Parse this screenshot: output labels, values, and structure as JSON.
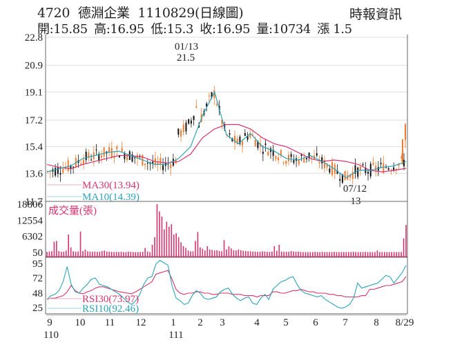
{
  "header": {
    "stock_code": "4720",
    "stock_name": "德淵企業",
    "date_code": "1110829(日線圖)",
    "source": "時報資訊",
    "open_label": "開:15.85",
    "high_label": "高:16.95",
    "low_label": "低:15.3",
    "close_label": "收:16.95",
    "volume_label": "量:10734",
    "change_label": "漲 1.5"
  },
  "colors": {
    "up_candle": "#f07a2e",
    "down_candle": "#111111",
    "ma30": "#d6336c",
    "ma10": "#2aa3b8",
    "volume": "#d6336c",
    "rsi30": "#d6336c",
    "rsi10": "#2aa3b8",
    "grid": "#dddddd",
    "axis": "#555555"
  },
  "annotations": {
    "peak_date": "01/13",
    "peak_value": "21.5",
    "trough_date": "07/12",
    "trough_value": "13"
  },
  "legends": {
    "ma30": "MA30(13.94)",
    "ma10": "MA10(14.39)",
    "volume": "成交量(張)",
    "rsi30": "RSI30(73.97)",
    "rsi10": "RSI10(92.46)"
  },
  "chart_data": [
    {
      "type": "candlestick",
      "title": "4720 德淵企業 1110829(日線圖)",
      "ylabel": "Price",
      "yticks": [
        22.8,
        20.9,
        19.1,
        17.2,
        15.4,
        13.6,
        11.7
      ],
      "ylim": [
        11.7,
        22.8
      ],
      "grid": true,
      "x_ticks": [
        "9",
        "10",
        "11",
        "12",
        "1",
        "2",
        "3",
        "4",
        "5",
        "6",
        "7",
        "8",
        "8/29"
      ],
      "x_year_labels": [
        "110",
        "111"
      ],
      "series": [
        {
          "name": "MA30",
          "last": 13.94,
          "values": [
            14.2,
            14.0,
            13.9,
            14.2,
            14.4,
            14.6,
            14.8,
            14.8,
            14.7,
            14.4,
            14.3,
            14.4,
            14.9,
            16.0,
            16.6,
            16.9,
            16.9,
            16.6,
            16.0,
            15.6,
            15.4,
            15.0,
            14.6,
            14.4,
            14.5,
            14.4,
            14.2,
            13.8,
            13.7,
            13.8,
            13.94
          ]
        },
        {
          "name": "MA10",
          "last": 14.39,
          "values": [
            13.7,
            13.9,
            14.1,
            14.6,
            14.8,
            15.0,
            15.1,
            14.8,
            14.5,
            14.2,
            14.2,
            14.6,
            15.4,
            17.5,
            19.1,
            16.2,
            15.6,
            16.3,
            15.4,
            15.1,
            14.6,
            14.5,
            14.8,
            14.4,
            13.9,
            13.3,
            13.8,
            13.8,
            14.0,
            14.1,
            14.39
          ]
        }
      ],
      "last_candle": {
        "open": 15.85,
        "high": 16.95,
        "low": 15.3,
        "close": 16.95
      },
      "annotations": [
        {
          "label": "01/13 21.5",
          "type": "high"
        },
        {
          "label": "07/12 13",
          "type": "low"
        }
      ]
    },
    {
      "type": "bar",
      "title": "成交量(張)",
      "yticks": [
        18806,
        12554,
        6302,
        50
      ],
      "ylim": [
        50,
        18806
      ],
      "values": [
        300,
        400,
        500,
        4200,
        4500,
        600,
        300,
        300,
        800,
        7000,
        2000,
        500,
        300,
        400,
        8200,
        600,
        1200,
        500,
        400,
        300,
        400,
        300,
        300,
        600,
        800,
        400,
        300,
        300,
        200,
        300,
        200,
        300,
        200,
        200,
        400,
        300,
        200,
        200,
        200,
        200,
        300,
        1800,
        400,
        200,
        3000,
        6000,
        18806,
        16000,
        14000,
        9000,
        12000,
        10000,
        11000,
        7000,
        7500,
        6000,
        4000,
        2500,
        1800,
        800,
        500,
        500,
        4500,
        8000,
        2000,
        1500,
        800,
        2500,
        1200,
        1000,
        800,
        900,
        600,
        500,
        4800,
        1200,
        2400,
        1600,
        900,
        800,
        1200,
        900,
        700,
        600,
        500,
        500,
        400,
        400,
        300,
        300,
        500,
        400,
        300,
        300,
        400,
        2500,
        700,
        3000,
        400,
        300,
        300,
        300,
        600,
        400,
        300,
        400,
        300,
        200,
        200,
        200,
        200,
        200,
        300,
        200,
        200,
        300,
        200,
        200,
        200,
        200,
        300,
        200,
        200,
        200,
        200,
        200,
        200,
        200,
        300,
        200,
        200,
        200,
        200,
        300,
        200,
        200,
        200,
        200,
        800,
        200,
        200,
        200,
        200,
        200,
        200,
        200,
        200,
        200,
        200,
        5500,
        10734
      ]
    },
    {
      "type": "line",
      "title": "RSI",
      "yticks": [
        95,
        72,
        48,
        25
      ],
      "ylim": [
        20,
        100
      ],
      "series": [
        {
          "name": "RSI30",
          "last": 73.97,
          "values": [
            38,
            40,
            40,
            42,
            44,
            50,
            60,
            52,
            48,
            47,
            50,
            52,
            56,
            58,
            58,
            56,
            54,
            52,
            50,
            49,
            48,
            47,
            50,
            54,
            58,
            62,
            66,
            78,
            80,
            82,
            84,
            70,
            54,
            48,
            46,
            48,
            48,
            50,
            50,
            48,
            48,
            46,
            46,
            48,
            48,
            48,
            46,
            46,
            46,
            44,
            44,
            44,
            42,
            44,
            44,
            44,
            50,
            50,
            48,
            48,
            50,
            52,
            52,
            54,
            52,
            50,
            50,
            48,
            48,
            48,
            46,
            46,
            44,
            44,
            42,
            42,
            42,
            42,
            44,
            44,
            54,
            54,
            56,
            58,
            60,
            60,
            62,
            64,
            66,
            74
          ]
        },
        {
          "name": "RSI10",
          "last": 92.46,
          "values": [
            38,
            44,
            46,
            52,
            66,
            90,
            62,
            50,
            48,
            56,
            62,
            70,
            72,
            62,
            60,
            58,
            54,
            50,
            46,
            40,
            34,
            30,
            36,
            46,
            62,
            72,
            74,
            94,
            100,
            96,
            92,
            60,
            40,
            36,
            30,
            32,
            44,
            52,
            48,
            40,
            38,
            40,
            42,
            50,
            54,
            56,
            46,
            40,
            36,
            40,
            42,
            32,
            30,
            40,
            46,
            38,
            54,
            60,
            66,
            68,
            72,
            74,
            62,
            52,
            48,
            46,
            44,
            42,
            44,
            38,
            34,
            30,
            26,
            24,
            26,
            30,
            40,
            64,
            56,
            58,
            60,
            62,
            64,
            70,
            76,
            74,
            64,
            72,
            80,
            92
          ]
        }
      ]
    }
  ]
}
